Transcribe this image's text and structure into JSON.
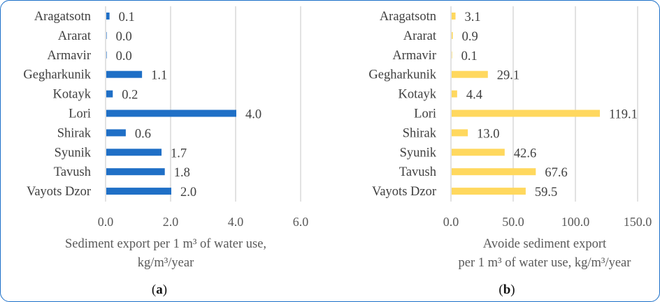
{
  "chart_data": [
    {
      "type": "bar",
      "orientation": "horizontal",
      "categories": [
        "Aragatsotn",
        "Ararat",
        "Armavir",
        "Gegharkunik",
        "Kotayk",
        "Lori",
        "Shirak",
        "Syunik",
        "Tavush",
        "Vayots Dzor"
      ],
      "values": [
        0.1,
        0.0,
        0.0,
        1.1,
        0.2,
        4.0,
        0.6,
        1.7,
        1.8,
        2.0
      ],
      "data_labels": [
        "0.1",
        "0.0",
        "0.0",
        "1.1",
        "0.2",
        "4.0",
        "0.6",
        "1.7",
        "1.8",
        "2.0"
      ],
      "xlim": [
        0,
        6
      ],
      "xticks": [
        "0.0",
        "2.0",
        "4.0",
        "6.0"
      ],
      "xtick_values": [
        0,
        2,
        4,
        6
      ],
      "xlabel_lines": [
        "Sediment export per 1 m³ of water use,",
        "kg/m³/year"
      ],
      "caption": "(a)",
      "color": "#1f6fc6",
      "grid": "vertical"
    },
    {
      "type": "bar",
      "orientation": "horizontal",
      "categories": [
        "Aragatsotn",
        "Ararat",
        "Armavir",
        "Gegharkunik",
        "Kotayk",
        "Lori",
        "Shirak",
        "Syunik",
        "Tavush",
        "Vayots Dzor"
      ],
      "values": [
        3.1,
        0.9,
        0.1,
        29.1,
        4.4,
        119.1,
        13.0,
        42.6,
        67.6,
        59.5
      ],
      "data_labels": [
        "3.1",
        "0.9",
        "0.1",
        "29.1",
        "4.4",
        "119.1",
        "13.0",
        "42.6",
        "67.6",
        "59.5"
      ],
      "xlim": [
        0,
        150
      ],
      "xticks": [
        "0.0",
        "50.0",
        "100.0",
        "150.0"
      ],
      "xtick_values": [
        0,
        50,
        100,
        150
      ],
      "xlabel_lines": [
        "Avoide sediment export",
        "per 1 m³ of water use, kg/m³/year"
      ],
      "caption": "(b)",
      "color": "#ffd85e",
      "grid": "vertical"
    }
  ]
}
